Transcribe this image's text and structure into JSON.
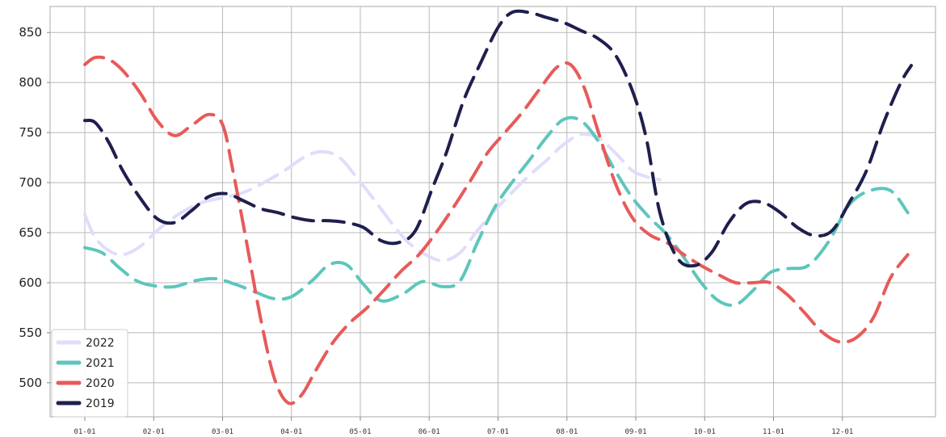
{
  "chart_data": {
    "type": "line",
    "title": "",
    "xlabel": "",
    "ylabel": "",
    "x_tick_labels": [
      "01-01",
      "02-01",
      "03-01",
      "04-01",
      "05-01",
      "06-01",
      "07-01",
      "08-01",
      "09-01",
      "10-01",
      "11-01",
      "12-01"
    ],
    "y_ticks": [
      500,
      550,
      600,
      650,
      700,
      750,
      800,
      850
    ],
    "xlim": [
      1,
      13
    ],
    "ylim": [
      466,
      876
    ],
    "grid": true,
    "legend_position": "bottom-left",
    "series": [
      {
        "name": "2022",
        "color": "#e0dcfb",
        "x": [
          1.0,
          1.15,
          1.35,
          1.55,
          1.8,
          2.1,
          2.4,
          2.7,
          3.0,
          3.3,
          3.6,
          3.9,
          4.2,
          4.45,
          4.7,
          4.95,
          5.2,
          5.45,
          5.7,
          5.95,
          6.2,
          6.45,
          6.7,
          6.95,
          7.2,
          7.45,
          7.7,
          7.95,
          8.2,
          8.45,
          8.7,
          8.95,
          9.2,
          9.35
        ],
        "y": [
          668,
          645,
          632,
          628,
          636,
          655,
          670,
          680,
          685,
          690,
          700,
          712,
          726,
          731,
          725,
          705,
          683,
          660,
          640,
          628,
          622,
          630,
          652,
          672,
          690,
          707,
          722,
          738,
          748,
          745,
          730,
          712,
          705,
          703
        ]
      },
      {
        "name": "2021",
        "color": "#5ec6bc",
        "x": [
          1.0,
          1.25,
          1.5,
          1.75,
          2.0,
          2.3,
          2.6,
          2.9,
          3.2,
          3.5,
          3.75,
          4.0,
          4.3,
          4.55,
          4.8,
          5.05,
          5.3,
          5.6,
          5.9,
          6.2,
          6.45,
          6.7,
          6.95,
          7.2,
          7.45,
          7.7,
          7.95,
          8.2,
          8.45,
          8.7,
          8.95,
          9.2,
          9.45,
          9.7,
          9.95,
          10.2,
          10.45,
          10.7,
          10.95,
          11.2,
          11.5,
          11.8,
          12.1,
          12.4,
          12.7,
          12.95
        ],
        "y": [
          635,
          630,
          615,
          602,
          597,
          596,
          602,
          604,
          598,
          590,
          584,
          586,
          602,
          618,
          618,
          598,
          582,
          588,
          601,
          596,
          602,
          640,
          675,
          700,
          722,
          745,
          763,
          762,
          742,
          712,
          685,
          665,
          648,
          625,
          600,
          582,
          578,
          592,
          610,
          614,
          617,
          641,
          678,
          692,
          692,
          670
        ]
      },
      {
        "name": "2020",
        "color": "#e85a5a",
        "x": [
          1.0,
          1.15,
          1.35,
          1.55,
          1.8,
          2.05,
          2.3,
          2.55,
          2.8,
          3.0,
          3.15,
          3.35,
          3.55,
          3.75,
          3.95,
          4.15,
          4.35,
          4.6,
          4.85,
          5.1,
          5.35,
          5.6,
          5.85,
          6.1,
          6.35,
          6.6,
          6.85,
          7.1,
          7.35,
          7.6,
          7.85,
          8.05,
          8.25,
          8.45,
          8.7,
          8.95,
          9.2,
          9.45,
          9.7,
          9.95,
          10.2,
          10.45,
          10.7,
          10.95,
          11.2,
          11.45,
          11.7,
          11.95,
          12.2,
          12.45,
          12.7,
          12.95
        ],
        "y": [
          818,
          825,
          823,
          812,
          790,
          762,
          747,
          757,
          768,
          758,
          712,
          640,
          565,
          505,
          480,
          488,
          512,
          540,
          560,
          575,
          593,
          612,
          628,
          650,
          675,
          702,
          730,
          750,
          770,
          793,
          815,
          818,
          795,
          752,
          700,
          665,
          648,
          640,
          628,
          617,
          608,
          600,
          600,
          600,
          588,
          570,
          551,
          541,
          545,
          565,
          605,
          628
        ]
      },
      {
        "name": "2019",
        "color": "#1f1f4e",
        "x": [
          1.0,
          1.15,
          1.35,
          1.55,
          1.8,
          2.05,
          2.3,
          2.55,
          2.8,
          3.05,
          3.3,
          3.55,
          3.8,
          4.05,
          4.3,
          4.55,
          4.8,
          5.05,
          5.3,
          5.55,
          5.8,
          6.05,
          6.25,
          6.5,
          6.75,
          7.0,
          7.2,
          7.45,
          7.7,
          7.95,
          8.2,
          8.45,
          8.7,
          8.95,
          9.15,
          9.35,
          9.6,
          9.85,
          10.1,
          10.35,
          10.6,
          10.85,
          11.1,
          11.35,
          11.6,
          11.85,
          12.1,
          12.35,
          12.6,
          12.85,
          13.0
        ],
        "y": [
          762,
          760,
          740,
          712,
          685,
          664,
          660,
          672,
          686,
          689,
          682,
          674,
          670,
          665,
          662,
          662,
          660,
          655,
          642,
          640,
          652,
          695,
          730,
          782,
          820,
          855,
          870,
          870,
          865,
          860,
          852,
          844,
          828,
          792,
          745,
          670,
          625,
          617,
          630,
          660,
          679,
          680,
          670,
          655,
          647,
          652,
          680,
          712,
          760,
          800,
          817
        ]
      }
    ]
  }
}
